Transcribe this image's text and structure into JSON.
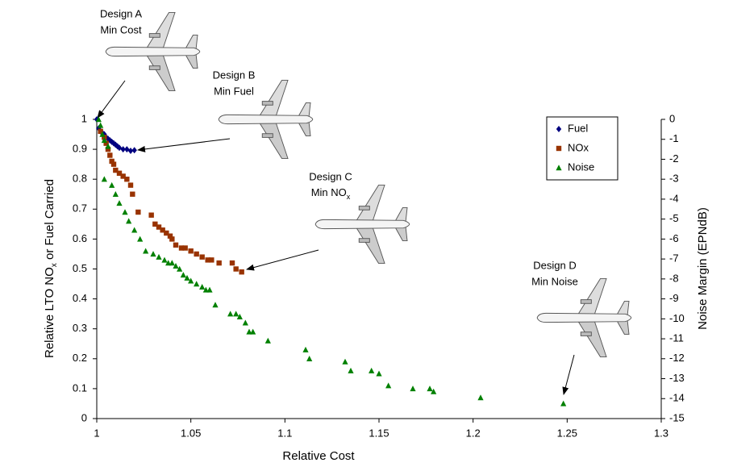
{
  "chart_data": {
    "type": "scatter",
    "x_label": "Relative Cost",
    "y_label": {
      "before": "Relative LTO NO",
      "sub": "x",
      "after": " or Fuel Carried"
    },
    "y2_label": "Noise Margin (EPNdB)",
    "xlim": [
      1,
      1.3
    ],
    "xticks": [
      1,
      1.05,
      1.1,
      1.15,
      1.2,
      1.25,
      1.3
    ],
    "ylim": [
      0,
      1
    ],
    "yticks": [
      0,
      0.1,
      0.2,
      0.3,
      0.4,
      0.5,
      0.6,
      0.7,
      0.8,
      0.9,
      1
    ],
    "y2lim": [
      -15,
      0
    ],
    "y2ticks": [
      0,
      -1,
      -2,
      -3,
      -4,
      -5,
      -6,
      -7,
      -8,
      -9,
      -10,
      -11,
      -12,
      -13,
      -14,
      -15
    ],
    "legend": "upper right",
    "series": [
      {
        "name": "Fuel",
        "color": "#000080",
        "marker": "diamond",
        "x": [
          1.0,
          1.001,
          1.002,
          1.003,
          1.004,
          1.005,
          1.006,
          1.007,
          1.008,
          1.009,
          1.01,
          1.011,
          1.012,
          1.014,
          1.016,
          1.018,
          1.02
        ],
        "values": [
          1.0,
          0.97,
          0.96,
          0.955,
          0.95,
          0.94,
          0.935,
          0.93,
          0.925,
          0.92,
          0.915,
          0.91,
          0.905,
          0.9,
          0.9,
          0.895,
          0.897
        ]
      },
      {
        "name": "NOx",
        "color": "#993300",
        "marker": "square",
        "x": [
          1.002,
          1.004,
          1.005,
          1.006,
          1.007,
          1.008,
          1.009,
          1.01,
          1.012,
          1.014,
          1.016,
          1.018,
          1.019,
          1.022,
          1.029,
          1.031,
          1.033,
          1.035,
          1.037,
          1.039,
          1.04,
          1.042,
          1.045,
          1.047,
          1.05,
          1.053,
          1.056,
          1.059,
          1.061,
          1.065,
          1.072,
          1.074,
          1.077
        ],
        "values": [
          0.96,
          0.94,
          0.92,
          0.9,
          0.88,
          0.86,
          0.85,
          0.83,
          0.82,
          0.81,
          0.8,
          0.78,
          0.75,
          0.69,
          0.68,
          0.65,
          0.64,
          0.63,
          0.62,
          0.61,
          0.6,
          0.58,
          0.57,
          0.57,
          0.56,
          0.55,
          0.54,
          0.53,
          0.53,
          0.52,
          0.52,
          0.5,
          0.49
        ]
      },
      {
        "name": "Noise",
        "color": "#008000",
        "marker": "triangle",
        "axis": "y2",
        "x": [
          1.001,
          1.002,
          1.003,
          1.004,
          1.006,
          1.004,
          1.008,
          1.01,
          1.012,
          1.015,
          1.017,
          1.02,
          1.023,
          1.026,
          1.03,
          1.033,
          1.036,
          1.038,
          1.04,
          1.042,
          1.044,
          1.046,
          1.048,
          1.05,
          1.053,
          1.056,
          1.058,
          1.06,
          1.063,
          1.071,
          1.074,
          1.076,
          1.079,
          1.081,
          1.083,
          1.091,
          1.111,
          1.113,
          1.132,
          1.135,
          1.146,
          1.15,
          1.155,
          1.168,
          1.177,
          1.179,
          1.204,
          1.248
        ],
        "values": [
          0,
          -0.3,
          -0.75,
          -1.05,
          -1.35,
          -3,
          -3.3,
          -3.75,
          -4.2,
          -4.65,
          -5.1,
          -5.55,
          -6,
          -6.6,
          -6.75,
          -6.9,
          -7.05,
          -7.2,
          -7.2,
          -7.35,
          -7.5,
          -7.8,
          -7.95,
          -8.1,
          -8.25,
          -8.4,
          -8.55,
          -8.55,
          -9.3,
          -9.75,
          -9.75,
          -9.9,
          -10.2,
          -10.65,
          -10.65,
          -11.1,
          -11.55,
          -12,
          -12.15,
          -12.6,
          -12.6,
          -12.75,
          -13.35,
          -13.5,
          -13.5,
          -13.65,
          -13.95,
          -14.25
        ]
      }
    ],
    "annotations": [
      {
        "lines": [
          "Design A",
          "Min Cost"
        ]
      },
      {
        "lines": [
          "Design B",
          "Min Fuel"
        ]
      },
      {
        "lines": [
          "Design C",
          "Min NO"
        ],
        "sub": "x"
      },
      {
        "lines": [
          "Design D",
          "Min Noise"
        ]
      }
    ]
  }
}
